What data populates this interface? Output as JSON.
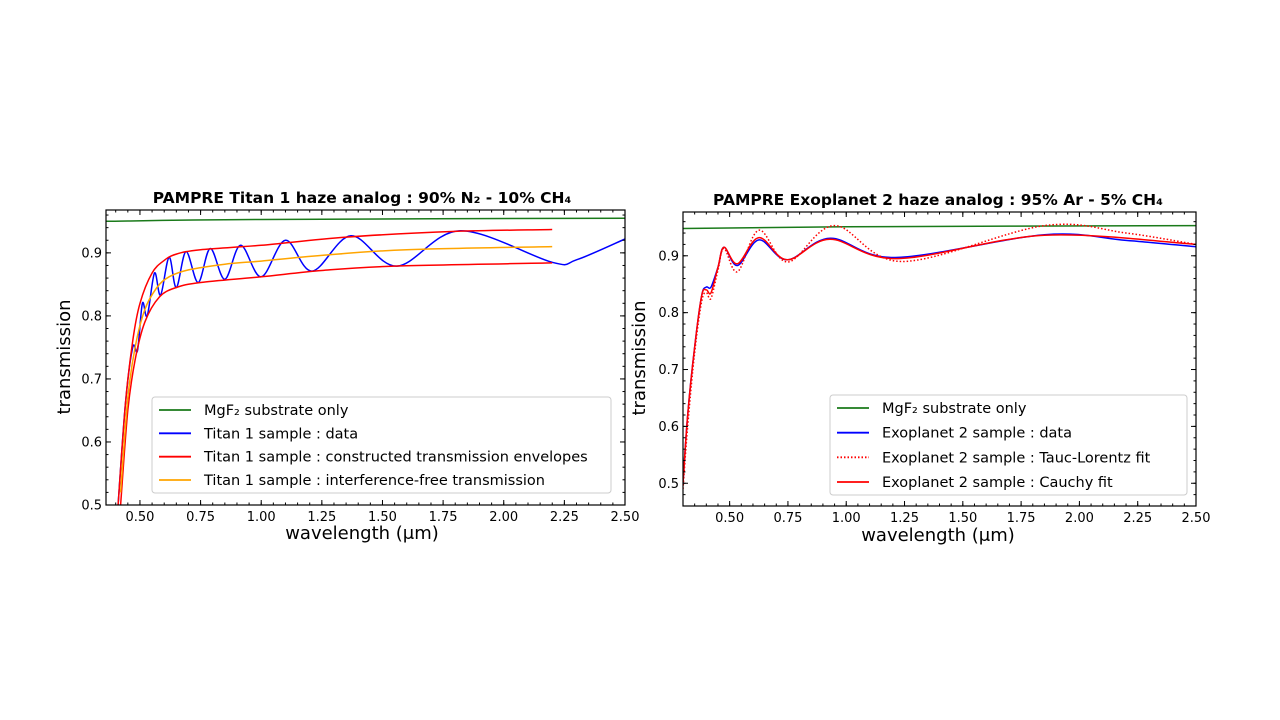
{
  "chart_data": [
    {
      "type": "line",
      "title": "PAMPRE Titan 1 haze analog : 90% N₂ - 10% CH₄",
      "xlabel": "wavelength (μm)",
      "ylabel": "transmission",
      "xlim": [
        0.36,
        2.5
      ],
      "ylim": [
        0.5,
        0.968
      ],
      "xticks": [
        0.5,
        0.75,
        1.0,
        1.25,
        1.5,
        1.75,
        2.0,
        2.25,
        2.5
      ],
      "xtick_labels": [
        "0.50",
        "0.75",
        "1.00",
        "1.25",
        "1.50",
        "1.75",
        "2.00",
        "2.25",
        "2.50"
      ],
      "yticks": [
        0.5,
        0.6,
        0.7,
        0.8,
        0.9
      ],
      "ytick_labels": [
        "0.5",
        "0.6",
        "0.7",
        "0.8",
        "0.9"
      ],
      "grid": false,
      "legend_position": "lower-right",
      "series": [
        {
          "name": "MgF₂ substrate only",
          "color": "#1a7a1a",
          "style": "solid",
          "x": [
            0.36,
            1.0,
            2.5
          ],
          "y": [
            0.95,
            0.953,
            0.955
          ]
        },
        {
          "name": "Titan 1 sample : data",
          "color": "#0000ff",
          "style": "solid",
          "x": [
            0.41,
            0.44,
            0.47,
            0.49,
            0.51,
            0.53,
            0.56,
            0.585,
            0.62,
            0.65,
            0.69,
            0.74,
            0.79,
            0.85,
            0.915,
            1.0,
            1.1,
            1.21,
            1.37,
            1.56,
            1.82,
            2.2,
            2.3,
            2.5
          ],
          "y": [
            0.5,
            0.66,
            0.75,
            0.745,
            0.82,
            0.8,
            0.868,
            0.833,
            0.893,
            0.845,
            0.902,
            0.853,
            0.907,
            0.858,
            0.912,
            0.862,
            0.92,
            0.871,
            0.927,
            0.879,
            0.935,
            0.885,
            0.889,
            0.922
          ]
        },
        {
          "name": "Titan 1 sample : constructed transmission envelopes",
          "color": "#ff0000",
          "style": "solid",
          "x": [
            0.41,
            0.44,
            0.47,
            0.5,
            0.55,
            0.6,
            0.65,
            0.75,
            1.0,
            1.35,
            1.8,
            2.2
          ],
          "y": [
            0.5,
            0.66,
            0.76,
            0.82,
            0.868,
            0.888,
            0.898,
            0.905,
            0.912,
            0.925,
            0.934,
            0.937
          ]
        },
        {
          "name": "",
          "color": "#ff0000",
          "style": "solid",
          "x": [
            0.42,
            0.45,
            0.48,
            0.52,
            0.58,
            0.65,
            0.75,
            1.0,
            1.25,
            1.55,
            2.2
          ],
          "y": [
            0.5,
            0.65,
            0.73,
            0.79,
            0.83,
            0.845,
            0.853,
            0.862,
            0.872,
            0.879,
            0.884
          ]
        },
        {
          "name": "Titan 1 sample : interference-free transmission",
          "color": "#ffa500",
          "style": "solid",
          "x": [
            0.42,
            0.45,
            0.48,
            0.52,
            0.57,
            0.62,
            0.7,
            0.85,
            1.0,
            1.25,
            1.6,
            2.2
          ],
          "y": [
            0.52,
            0.67,
            0.75,
            0.81,
            0.845,
            0.862,
            0.873,
            0.882,
            0.887,
            0.896,
            0.905,
            0.91
          ]
        }
      ],
      "legend": [
        "MgF₂ substrate only",
        "Titan 1 sample : data",
        "Titan 1 sample : constructed transmission envelopes",
        "Titan 1 sample : interference-free transmission"
      ]
    },
    {
      "type": "line",
      "title": "PAMPRE Exoplanet 2 haze analog : 95% Ar - 5% CH₄",
      "xlabel": "wavelength (μm)",
      "ylabel": "transmission",
      "xlim": [
        0.3,
        2.5
      ],
      "ylim": [
        0.46,
        0.977
      ],
      "xticks": [
        0.5,
        0.75,
        1.0,
        1.25,
        1.5,
        1.75,
        2.0,
        2.25,
        2.5
      ],
      "xtick_labels": [
        "0.50",
        "0.75",
        "1.00",
        "1.25",
        "1.50",
        "1.75",
        "2.00",
        "2.25",
        "2.50"
      ],
      "yticks": [
        0.5,
        0.6,
        0.7,
        0.8,
        0.9
      ],
      "ytick_labels": [
        "0.5",
        "0.6",
        "0.7",
        "0.8",
        "0.9"
      ],
      "grid": false,
      "legend_position": "lower-right",
      "series": [
        {
          "name": "MgF₂ substrate only",
          "color": "#1a7a1a",
          "style": "solid",
          "x": [
            0.3,
            1.0,
            2.5
          ],
          "y": [
            0.948,
            0.951,
            0.953
          ]
        },
        {
          "name": "Exoplanet 2 sample : data",
          "color": "#0000ff",
          "style": "solid",
          "x": [
            0.3,
            0.32,
            0.35,
            0.38,
            0.4,
            0.42,
            0.45,
            0.476,
            0.534,
            0.626,
            0.747,
            0.932,
            1.21,
            1.85,
            2.2,
            2.5
          ],
          "y": [
            0.5,
            0.62,
            0.74,
            0.83,
            0.845,
            0.845,
            0.88,
            0.915,
            0.883,
            0.928,
            0.893,
            0.931,
            0.897,
            0.937,
            0.927,
            0.916
          ]
        },
        {
          "name": "Exoplanet 2 sample : Tauc-Lorentz fit",
          "color": "#ff0000",
          "style": "dotted",
          "x": [
            0.3,
            0.32,
            0.35,
            0.38,
            0.4,
            0.42,
            0.45,
            0.476,
            0.534,
            0.626,
            0.75,
            0.95,
            1.24,
            1.85,
            2.2,
            2.5
          ],
          "y": [
            0.49,
            0.6,
            0.73,
            0.82,
            0.835,
            0.825,
            0.875,
            0.913,
            0.872,
            0.945,
            0.889,
            0.953,
            0.89,
            0.953,
            0.94,
            0.92
          ]
        },
        {
          "name": "Exoplanet 2 sample : Cauchy fit",
          "color": "#ff0000",
          "style": "solid",
          "x": [
            0.3,
            0.32,
            0.35,
            0.38,
            0.4,
            0.42,
            0.45,
            0.476,
            0.534,
            0.626,
            0.747,
            0.93,
            1.22,
            1.85,
            2.5
          ],
          "y": [
            0.5,
            0.62,
            0.74,
            0.83,
            0.84,
            0.835,
            0.88,
            0.915,
            0.886,
            0.932,
            0.893,
            0.929,
            0.895,
            0.936,
            0.92
          ]
        }
      ],
      "legend": [
        "MgF₂ substrate only",
        "Exoplanet 2 sample : data",
        "Exoplanet 2 sample : Tauc-Lorentz fit",
        "Exoplanet 2 sample : Cauchy fit"
      ]
    }
  ]
}
